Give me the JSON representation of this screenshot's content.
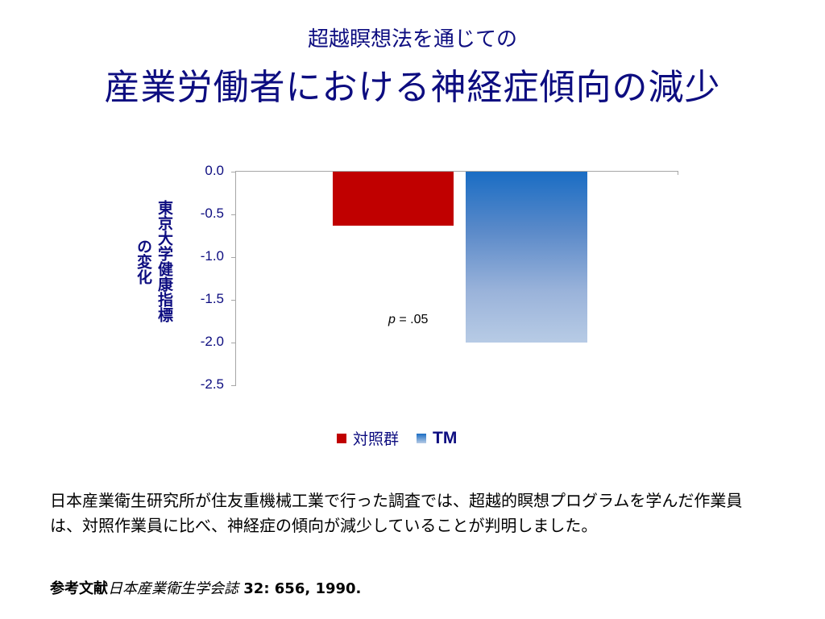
{
  "header": {
    "subtitle": "超越瞑想法を通じての",
    "title": "産業労働者における神経症傾向の減少"
  },
  "chart_data": {
    "type": "bar",
    "title": "産業労働者における神経症傾向の減少",
    "ylabel": "東京大学健康指標の変化",
    "ylabel_lines": [
      "東京大学健康指標",
      "の変化"
    ],
    "xlabel": "",
    "categories": [
      "対照群",
      "TM"
    ],
    "series": [
      {
        "name": "対照群",
        "values": [
          -0.63
        ],
        "color": "#c00000"
      },
      {
        "name": "TM",
        "values": [
          -2.0
        ],
        "color": "#1a6dc4"
      }
    ],
    "yticks": [
      "0.0",
      "-0.5",
      "-1.0",
      "-1.5",
      "-2.0",
      "-2.5"
    ],
    "ylim": [
      -2.5,
      0.0
    ],
    "grid": false,
    "legend_position": "bottom",
    "annotations": [
      {
        "text": "p = .05",
        "near": "TM"
      }
    ]
  },
  "legend": {
    "control": "対照群",
    "tm": "TM"
  },
  "annotation": {
    "p_label": "p",
    "p_value": " = .05"
  },
  "body": {
    "text": "日本産業衛生研究所が住友重機械工業で行った調査では、超越的瞑想プログラムを学んだ作業員は、対照作業員に比べ、神経症の傾向が減少していることが判明しました。"
  },
  "reference": {
    "label": "参考文献",
    "journal": "日本産業衛生学会誌",
    "citation": " 32: 656, 1990."
  }
}
